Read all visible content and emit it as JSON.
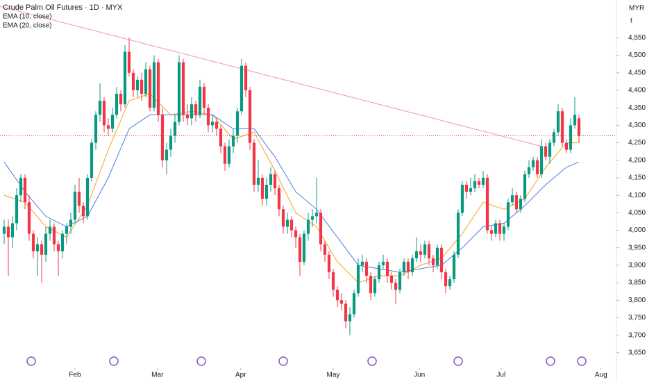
{
  "chart_data": {
    "type": "candlestick",
    "title": "Crude Palm Oil Futures · 1D · MYX",
    "axis_units": [
      "MYR",
      "t"
    ],
    "up_color": "#089981",
    "down_color": "#f23645",
    "ylim": [
      3610,
      4658
    ],
    "xlim": [
      -1,
      147
    ],
    "yticks": [
      {
        "value": 3650,
        "label": "3,650"
      },
      {
        "value": 3700,
        "label": "3,700"
      },
      {
        "value": 3750,
        "label": "3,750"
      },
      {
        "value": 3800,
        "label": "3,800"
      },
      {
        "value": 3850,
        "label": "3,850"
      },
      {
        "value": 3900,
        "label": "3,900"
      },
      {
        "value": 3950,
        "label": "3,950"
      },
      {
        "value": 4000,
        "label": "4,000"
      },
      {
        "value": 4050,
        "label": "4,050"
      },
      {
        "value": 4100,
        "label": "4,100"
      },
      {
        "value": 4150,
        "label": "4,150"
      },
      {
        "value": 4200,
        "label": "4,200"
      },
      {
        "value": 4250,
        "label": "4,250"
      },
      {
        "value": 4300,
        "label": "4,300"
      },
      {
        "value": 4350,
        "label": "4,350"
      },
      {
        "value": 4400,
        "label": "4,400"
      },
      {
        "value": 4450,
        "label": "4,450"
      },
      {
        "value": 4500,
        "label": "4,500"
      },
      {
        "value": 4550,
        "label": "4,550"
      }
    ],
    "xticks": [
      {
        "value": 17,
        "label": "Feb"
      },
      {
        "value": 36.8,
        "label": "Mar"
      },
      {
        "value": 56.8,
        "label": "Apr"
      },
      {
        "value": 79,
        "label": "May"
      },
      {
        "value": 99.7,
        "label": "Jun"
      },
      {
        "value": 119.3,
        "label": "Jul"
      },
      {
        "value": 143.3,
        "label": "Aug"
      }
    ],
    "ohlc": [
      [
        3990,
        4030,
        3960,
        4010
      ],
      [
        4010,
        4030,
        3870,
        3980
      ],
      [
        3980,
        4040,
        3950,
        4020
      ],
      [
        4020,
        4120,
        4000,
        4100
      ],
      [
        4100,
        4160,
        4080,
        4150
      ],
      [
        4150,
        4160,
        4060,
        4080
      ],
      [
        4080,
        4100,
        3970,
        3990
      ],
      [
        3990,
        4000,
        3920,
        3940
      ],
      [
        3940,
        3980,
        3870,
        3960
      ],
      [
        3960,
        3970,
        3850,
        3930
      ],
      [
        3930,
        4010,
        3910,
        3990
      ],
      [
        3990,
        4030,
        3970,
        4010
      ],
      [
        4010,
        4020,
        3940,
        3960
      ],
      [
        3960,
        3970,
        3870,
        3940
      ],
      [
        3940,
        4000,
        3920,
        3990
      ],
      [
        3990,
        4020,
        3960,
        4010
      ],
      [
        4010,
        4050,
        3990,
        4030
      ],
      [
        4030,
        4130,
        4020,
        4110
      ],
      [
        4110,
        4150,
        4050,
        4070
      ],
      [
        4070,
        4080,
        4020,
        4040
      ],
      [
        4040,
        4160,
        4030,
        4150
      ],
      [
        4150,
        4260,
        4140,
        4250
      ],
      [
        4250,
        4340,
        4230,
        4330
      ],
      [
        4330,
        4420,
        4310,
        4370
      ],
      [
        4370,
        4380,
        4280,
        4300
      ],
      [
        4300,
        4320,
        4270,
        4290
      ],
      [
        4290,
        4350,
        4280,
        4330
      ],
      [
        4330,
        4410,
        4320,
        4390
      ],
      [
        4390,
        4400,
        4340,
        4360
      ],
      [
        4360,
        4530,
        4350,
        4510
      ],
      [
        4510,
        4550,
        4440,
        4450
      ],
      [
        4450,
        4460,
        4380,
        4400
      ],
      [
        4400,
        4440,
        4380,
        4430
      ],
      [
        4430,
        4450,
        4370,
        4390
      ],
      [
        4390,
        4480,
        4380,
        4460
      ],
      [
        4460,
        4470,
        4340,
        4350
      ],
      [
        4350,
        4500,
        4340,
        4480
      ],
      [
        4480,
        4490,
        4310,
        4330
      ],
      [
        4330,
        4350,
        4180,
        4200
      ],
      [
        4200,
        4250,
        4160,
        4230
      ],
      [
        4230,
        4290,
        4210,
        4270
      ],
      [
        4270,
        4330,
        4250,
        4310
      ],
      [
        4310,
        4500,
        4300,
        4480
      ],
      [
        4480,
        4490,
        4310,
        4330
      ],
      [
        4330,
        4360,
        4300,
        4320
      ],
      [
        4320,
        4380,
        4300,
        4360
      ],
      [
        4360,
        4370,
        4310,
        4330
      ],
      [
        4330,
        4430,
        4320,
        4410
      ],
      [
        4410,
        4420,
        4330,
        4350
      ],
      [
        4350,
        4360,
        4280,
        4300
      ],
      [
        4300,
        4330,
        4280,
        4310
      ],
      [
        4310,
        4320,
        4270,
        4290
      ],
      [
        4290,
        4300,
        4220,
        4240
      ],
      [
        4240,
        4250,
        4170,
        4190
      ],
      [
        4190,
        4260,
        4180,
        4240
      ],
      [
        4240,
        4290,
        4220,
        4270
      ],
      [
        4270,
        4350,
        4250,
        4340
      ],
      [
        4340,
        4490,
        4330,
        4470
      ],
      [
        4470,
        4480,
        4380,
        4400
      ],
      [
        4400,
        4410,
        4230,
        4250
      ],
      [
        4250,
        4260,
        4110,
        4130
      ],
      [
        4130,
        4200,
        4110,
        4150
      ],
      [
        4150,
        4160,
        4070,
        4090
      ],
      [
        4090,
        4150,
        4070,
        4130
      ],
      [
        4130,
        4180,
        4110,
        4160
      ],
      [
        4160,
        4170,
        4100,
        4120
      ],
      [
        4120,
        4130,
        4040,
        4060
      ],
      [
        4060,
        4070,
        3990,
        4010
      ],
      [
        4010,
        4050,
        3990,
        4030
      ],
      [
        4030,
        4040,
        3980,
        4000
      ],
      [
        4000,
        4010,
        3950,
        3980
      ],
      [
        3980,
        3990,
        3870,
        3910
      ],
      [
        3910,
        4000,
        3900,
        3990
      ],
      [
        3990,
        4050,
        3970,
        4030
      ],
      [
        4030,
        4060,
        4010,
        4040
      ],
      [
        4040,
        4150,
        4020,
        4050
      ],
      [
        4050,
        4060,
        3940,
        3960
      ],
      [
        3960,
        3970,
        3910,
        3930
      ],
      [
        3930,
        3940,
        3860,
        3880
      ],
      [
        3880,
        3890,
        3810,
        3830
      ],
      [
        3830,
        3840,
        3780,
        3800
      ],
      [
        3800,
        3820,
        3770,
        3790
      ],
      [
        3790,
        3800,
        3720,
        3740
      ],
      [
        3740,
        3780,
        3700,
        3760
      ],
      [
        3760,
        3830,
        3750,
        3820
      ],
      [
        3820,
        3920,
        3810,
        3900
      ],
      [
        3900,
        3930,
        3880,
        3910
      ],
      [
        3910,
        3920,
        3850,
        3870
      ],
      [
        3870,
        3880,
        3800,
        3820
      ],
      [
        3820,
        3870,
        3810,
        3860
      ],
      [
        3860,
        3910,
        3850,
        3900
      ],
      [
        3900,
        3930,
        3890,
        3910
      ],
      [
        3910,
        3920,
        3850,
        3870
      ],
      [
        3870,
        3880,
        3830,
        3850
      ],
      [
        3850,
        3860,
        3790,
        3830
      ],
      [
        3830,
        3890,
        3820,
        3880
      ],
      [
        3880,
        3920,
        3870,
        3910
      ],
      [
        3910,
        3920,
        3860,
        3880
      ],
      [
        3880,
        3930,
        3870,
        3920
      ],
      [
        3920,
        3980,
        3910,
        3940
      ],
      [
        3940,
        3960,
        3910,
        3930
      ],
      [
        3930,
        3970,
        3920,
        3960
      ],
      [
        3960,
        3970,
        3900,
        3920
      ],
      [
        3920,
        3930,
        3880,
        3900
      ],
      [
        3900,
        3960,
        3890,
        3950
      ],
      [
        3950,
        3960,
        3860,
        3880
      ],
      [
        3880,
        3890,
        3820,
        3840
      ],
      [
        3840,
        3870,
        3830,
        3860
      ],
      [
        3860,
        3940,
        3850,
        3930
      ],
      [
        3930,
        4060,
        3920,
        4050
      ],
      [
        4050,
        4140,
        4040,
        4130
      ],
      [
        4130,
        4140,
        4090,
        4110
      ],
      [
        4110,
        4150,
        4100,
        4120
      ],
      [
        4120,
        4160,
        4110,
        4140
      ],
      [
        4140,
        4150,
        4120,
        4130
      ],
      [
        4130,
        4170,
        4120,
        4150
      ],
      [
        4150,
        4160,
        3990,
        4000
      ],
      [
        4000,
        4010,
        3970,
        3990
      ],
      [
        3990,
        4030,
        3980,
        4020
      ],
      [
        4020,
        4030,
        3970,
        3990
      ],
      [
        3990,
        4020,
        3970,
        4010
      ],
      [
        4010,
        4090,
        4000,
        4080
      ],
      [
        4080,
        4120,
        4070,
        4100
      ],
      [
        4100,
        4110,
        4050,
        4060
      ],
      [
        4060,
        4100,
        4050,
        4090
      ],
      [
        4090,
        4170,
        4080,
        4160
      ],
      [
        4160,
        4200,
        4150,
        4180
      ],
      [
        4180,
        4210,
        4170,
        4200
      ],
      [
        4200,
        4210,
        4150,
        4160
      ],
      [
        4160,
        4260,
        4150,
        4240
      ],
      [
        4240,
        4250,
        4200,
        4210
      ],
      [
        4210,
        4260,
        4190,
        4250
      ],
      [
        4250,
        4290,
        4240,
        4280
      ],
      [
        4280,
        4360,
        4270,
        4340
      ],
      [
        4340,
        4350,
        4240,
        4250
      ],
      [
        4250,
        4260,
        4220,
        4230
      ],
      [
        4230,
        4320,
        4220,
        4300
      ],
      [
        4300,
        4380,
        4290,
        4330
      ],
      [
        4320,
        4330,
        4250,
        4270
      ]
    ],
    "series": [
      {
        "name": "EMA (10, close)",
        "color": "#f7a21b",
        "x": [
          0,
          5,
          10,
          15,
          20,
          25,
          30,
          35,
          40,
          45,
          50,
          55,
          60,
          65,
          70,
          75,
          80,
          85,
          90,
          95,
          100,
          105,
          110,
          115,
          120,
          125,
          130,
          135,
          138
        ],
        "values": [
          4100,
          4080,
          4010,
          3980,
          4070,
          4230,
          4370,
          4390,
          4330,
          4340,
          4330,
          4260,
          4280,
          4170,
          4050,
          4010,
          3910,
          3850,
          3870,
          3870,
          3900,
          3920,
          3990,
          4080,
          4060,
          4090,
          4180,
          4250,
          4250
        ]
      },
      {
        "name": "EMA (20, close)",
        "color": "#4a7fe0",
        "x": [
          0,
          5,
          10,
          15,
          20,
          25,
          30,
          35,
          40,
          45,
          50,
          55,
          60,
          65,
          70,
          75,
          80,
          85,
          90,
          95,
          100,
          105,
          110,
          115,
          120,
          125,
          130,
          135,
          138
        ],
        "values": [
          4195,
          4110,
          4040,
          4010,
          4040,
          4150,
          4290,
          4330,
          4330,
          4330,
          4330,
          4290,
          4290,
          4210,
          4110,
          4060,
          3980,
          3900,
          3890,
          3880,
          3890,
          3900,
          3950,
          4010,
          4020,
          4070,
          4130,
          4180,
          4195
        ]
      }
    ],
    "trend_line": {
      "x": [
        -1,
        129
      ],
      "values": [
        4640,
        4240
      ],
      "color": "#f48fb1"
    }
  }
}
